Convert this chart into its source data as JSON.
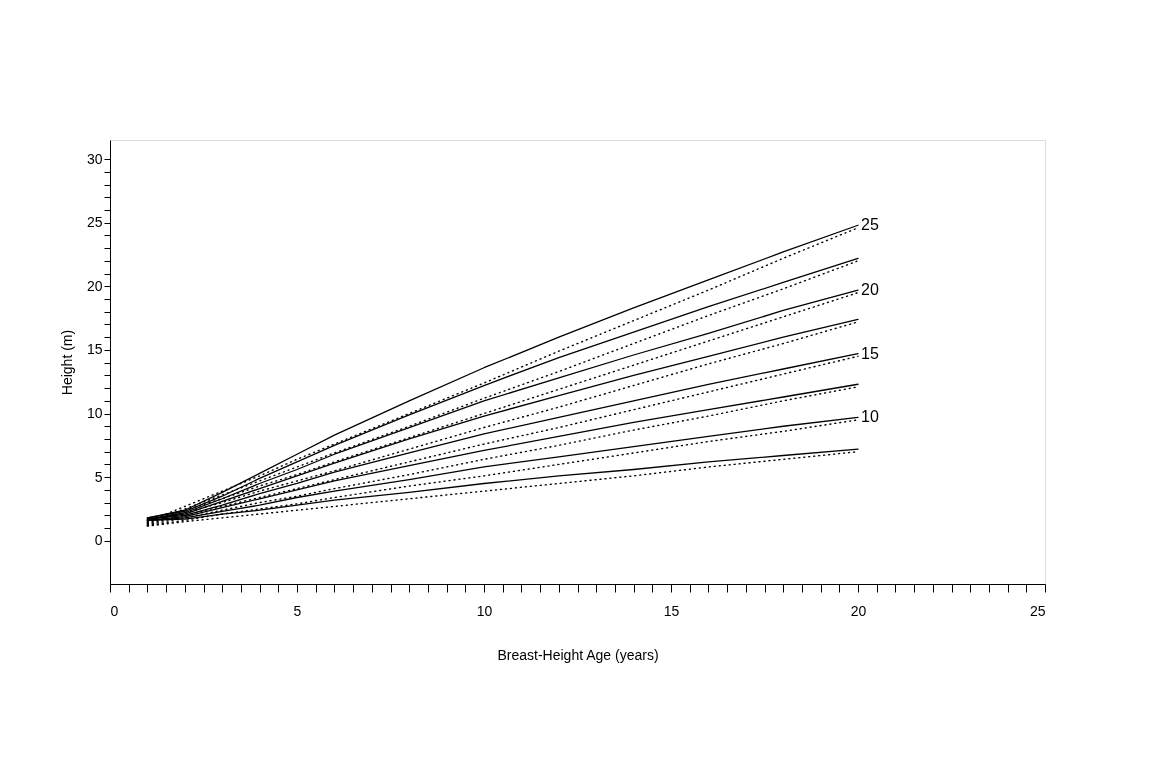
{
  "chart_data": {
    "type": "line",
    "xlabel": "Breast-Height Age (years)",
    "ylabel": "Height (m)",
    "x": [
      1,
      2,
      3,
      4,
      5,
      6,
      8,
      10,
      12,
      14,
      16,
      18,
      20
    ],
    "xlim": [
      0,
      25
    ],
    "ylim": [
      -3.4,
      31.5
    ],
    "xticks": [
      0,
      {
        "value": 0.5,
        "label": null
      },
      {
        "value": 1,
        "label": null
      },
      {
        "value": 1.5,
        "label": null
      },
      {
        "value": 2,
        "label": null
      },
      {
        "value": 2.5,
        "label": null
      },
      {
        "value": 3,
        "label": null
      },
      {
        "value": 3.5,
        "label": null
      },
      {
        "value": 4,
        "label": null
      },
      {
        "value": 4.5,
        "label": null
      },
      5,
      {
        "value": 5.5,
        "label": null
      },
      {
        "value": 6,
        "label": null
      },
      {
        "value": 6.5,
        "label": null
      },
      {
        "value": 7,
        "label": null
      },
      {
        "value": 7.5,
        "label": null
      },
      {
        "value": 8,
        "label": null
      },
      {
        "value": 8.5,
        "label": null
      },
      {
        "value": 9,
        "label": null
      },
      {
        "value": 9.5,
        "label": null
      },
      10,
      {
        "value": 10.5,
        "label": null
      },
      {
        "value": 11,
        "label": null
      },
      {
        "value": 11.5,
        "label": null
      },
      {
        "value": 12,
        "label": null
      },
      {
        "value": 12.5,
        "label": null
      },
      {
        "value": 13,
        "label": null
      },
      {
        "value": 13.5,
        "label": null
      },
      {
        "value": 14,
        "label": null
      },
      {
        "value": 14.5,
        "label": null
      },
      15,
      {
        "value": 15.5,
        "label": null
      },
      {
        "value": 16,
        "label": null
      },
      {
        "value": 16.5,
        "label": null
      },
      {
        "value": 17,
        "label": null
      },
      {
        "value": 17.5,
        "label": null
      },
      {
        "value": 18,
        "label": null
      },
      {
        "value": 18.5,
        "label": null
      },
      {
        "value": 19,
        "label": null
      },
      {
        "value": 19.5,
        "label": null
      },
      20,
      {
        "value": 20.5,
        "label": null
      },
      {
        "value": 21,
        "label": null
      },
      {
        "value": 21.5,
        "label": null
      },
      {
        "value": 22,
        "label": null
      },
      {
        "value": 22.5,
        "label": null
      },
      {
        "value": 23,
        "label": null
      },
      {
        "value": 23.5,
        "label": null
      },
      {
        "value": 24,
        "label": null
      },
      {
        "value": 24.5,
        "label": null
      },
      25
    ],
    "yticks": [
      0,
      {
        "value": 1,
        "label": null
      },
      {
        "value": 2,
        "label": null
      },
      {
        "value": 3,
        "label": null
      },
      {
        "value": 4,
        "label": null
      },
      5,
      {
        "value": 6,
        "label": null
      },
      {
        "value": 7,
        "label": null
      },
      {
        "value": 8,
        "label": null
      },
      {
        "value": 9,
        "label": null
      },
      10,
      {
        "value": 11,
        "label": null
      },
      {
        "value": 12,
        "label": null
      },
      {
        "value": 13,
        "label": null
      },
      {
        "value": 14,
        "label": null
      },
      15,
      {
        "value": 16,
        "label": null
      },
      {
        "value": 17,
        "label": null
      },
      {
        "value": 18,
        "label": null
      },
      {
        "value": 19,
        "label": null
      },
      20,
      {
        "value": 21,
        "label": null
      },
      {
        "value": 22,
        "label": null
      },
      {
        "value": 23,
        "label": null
      },
      {
        "value": 24,
        "label": null
      },
      25,
      {
        "value": 26,
        "label": null
      },
      {
        "value": 27,
        "label": null
      },
      {
        "value": 28,
        "label": null
      },
      {
        "value": 29,
        "label": null
      },
      30
    ],
    "grid": false,
    "marker": "none",
    "series": [
      {
        "name": "25",
        "color": "#000000",
        "line_style": "solid",
        "values": [
          1.8,
          2.4,
          3.8,
          5.3,
          6.8,
          8.3,
          11.0,
          13.6,
          16.0,
          18.3,
          20.5,
          22.7,
          24.8
        ]
      },
      {
        "color": "#000000",
        "line_style": "solid",
        "values": [
          1.8,
          2.3,
          3.5,
          4.9,
          6.2,
          7.5,
          9.9,
          12.2,
          14.4,
          16.4,
          18.4,
          20.3,
          22.2
        ]
      },
      {
        "name": "20",
        "color": "#000000",
        "line_style": "solid",
        "values": [
          1.7,
          2.2,
          3.3,
          4.5,
          5.6,
          6.8,
          8.9,
          11.0,
          12.8,
          14.6,
          16.3,
          18.1,
          19.7
        ]
      },
      {
        "color": "#000000",
        "line_style": "solid",
        "values": [
          1.7,
          2.1,
          3.1,
          4.1,
          5.1,
          6.1,
          8.0,
          9.8,
          11.4,
          13.0,
          14.5,
          16.0,
          17.4
        ]
      },
      {
        "name": "15",
        "color": "#000000",
        "line_style": "solid",
        "values": [
          1.7,
          2.0,
          2.8,
          3.7,
          4.5,
          5.4,
          6.9,
          8.4,
          9.7,
          11.0,
          12.3,
          13.5,
          14.7
        ]
      },
      {
        "color": "#000000",
        "line_style": "solid",
        "values": [
          1.6,
          1.9,
          2.6,
          3.3,
          4.0,
          4.7,
          5.9,
          7.1,
          8.2,
          9.3,
          10.3,
          11.3,
          12.3
        ]
      },
      {
        "name": "10",
        "color": "#000000",
        "line_style": "solid",
        "values": [
          1.6,
          1.8,
          2.3,
          2.8,
          3.4,
          3.9,
          4.8,
          5.8,
          6.6,
          7.4,
          8.2,
          9.0,
          9.7
        ]
      },
      {
        "color": "#000000",
        "line_style": "solid",
        "values": [
          1.6,
          1.7,
          2.1,
          2.4,
          2.8,
          3.2,
          3.8,
          4.5,
          5.1,
          5.6,
          6.2,
          6.7,
          7.2
        ]
      },
      {
        "color": "#000000",
        "line_style": "dotted",
        "values": [
          1.5,
          2.7,
          3.9,
          5.1,
          6.4,
          7.6,
          10.0,
          12.4,
          14.9,
          17.3,
          19.7,
          22.2,
          24.6
        ]
      },
      {
        "color": "#000000",
        "line_style": "dotted",
        "values": [
          1.45,
          2.5,
          3.6,
          4.7,
          5.8,
          6.9,
          9.0,
          11.2,
          13.3,
          15.5,
          17.7,
          19.8,
          22.0
        ]
      },
      {
        "color": "#000000",
        "line_style": "dotted",
        "values": [
          1.4,
          2.4,
          3.3,
          4.3,
          5.2,
          6.2,
          8.1,
          10.0,
          11.9,
          13.8,
          15.7,
          17.6,
          19.5
        ]
      },
      {
        "color": "#000000",
        "line_style": "dotted",
        "values": [
          1.35,
          2.2,
          3.0,
          3.9,
          4.7,
          5.5,
          7.2,
          8.9,
          10.5,
          12.2,
          13.9,
          15.5,
          17.2
        ]
      },
      {
        "color": "#000000",
        "line_style": "dotted",
        "values": [
          1.3,
          2.0,
          2.7,
          3.4,
          4.1,
          4.8,
          6.2,
          7.6,
          8.9,
          10.3,
          11.7,
          13.1,
          14.5
        ]
      },
      {
        "color": "#000000",
        "line_style": "dotted",
        "values": [
          1.25,
          1.8,
          2.4,
          3.0,
          3.5,
          4.1,
          5.2,
          6.4,
          7.5,
          8.7,
          9.8,
          11.0,
          12.1
        ]
      },
      {
        "color": "#000000",
        "line_style": "dotted",
        "values": [
          1.2,
          1.6,
          2.1,
          2.5,
          2.9,
          3.4,
          4.3,
          5.1,
          6.0,
          6.9,
          7.8,
          8.6,
          9.5
        ]
      },
      {
        "color": "#000000",
        "line_style": "dotted",
        "values": [
          1.15,
          1.5,
          1.8,
          2.1,
          2.4,
          2.7,
          3.3,
          3.9,
          4.5,
          5.1,
          5.8,
          6.4,
          7.0
        ]
      }
    ]
  }
}
